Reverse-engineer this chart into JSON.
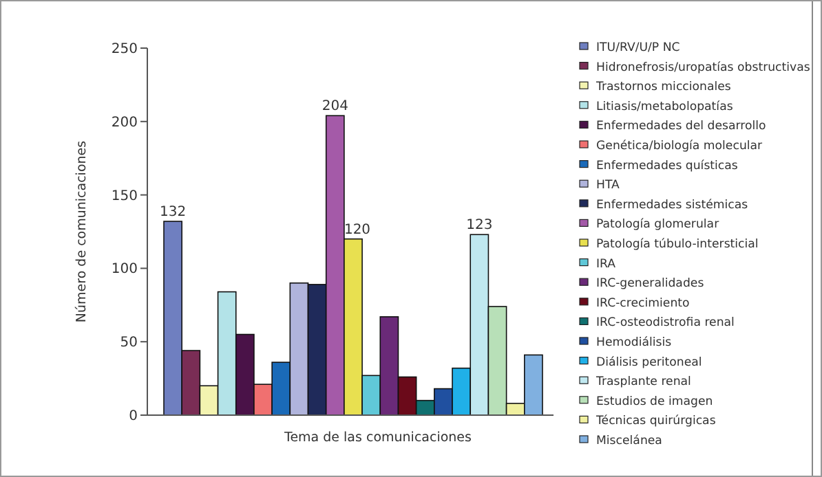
{
  "chart_data": {
    "type": "bar",
    "xlabel": "Tema de las comunicaciones",
    "ylabel": "Número de comunicaciones",
    "categories": [
      null
    ],
    "series": [
      {
        "name": "ITU/RV/U/P NC",
        "color": "#6f7fc0",
        "values": [
          132
        ],
        "value_labels": [
          "132"
        ]
      },
      {
        "name": "Hidronefrosis/uropatías obstructivas",
        "color": "#7a2d55",
        "values": [
          44
        ]
      },
      {
        "name": "Trastornos miccionales",
        "color": "#f3f3b0",
        "values": [
          20
        ]
      },
      {
        "name": "Litiasis/metabolopatías",
        "color": "#b3e3e8",
        "values": [
          84
        ]
      },
      {
        "name": "Enfermedades del desarrollo",
        "color": "#4a1248",
        "values": [
          55
        ]
      },
      {
        "name": "Genética/biología molecular",
        "color": "#f07070",
        "values": [
          21
        ]
      },
      {
        "name": "Enfermedades quísticas",
        "color": "#1a6ab8",
        "values": [
          36
        ]
      },
      {
        "name": "HTA",
        "color": "#b0b4dc",
        "values": [
          90
        ]
      },
      {
        "name": "Enfermedades sistémicas",
        "color": "#1f2a5a",
        "values": [
          89
        ]
      },
      {
        "name": "Patología glomerular",
        "color": "#a45aa8",
        "values": [
          204
        ],
        "value_labels": [
          "204"
        ]
      },
      {
        "name": "Patología túbulo-intersticial",
        "color": "#e8e050",
        "values": [
          120
        ],
        "value_labels": [
          "120"
        ]
      },
      {
        "name": "IRA",
        "color": "#60c8d8",
        "values": [
          27
        ]
      },
      {
        "name": "IRC-generalidades",
        "color": "#6a2a78",
        "values": [
          67
        ]
      },
      {
        "name": "IRC-crecimiento",
        "color": "#6b0a1a",
        "values": [
          26
        ]
      },
      {
        "name": "IRC-osteodistrofia renal",
        "color": "#107070",
        "values": [
          10
        ]
      },
      {
        "name": "Hemodiálisis",
        "color": "#2050a0",
        "values": [
          18
        ]
      },
      {
        "name": "Diálisis peritoneal",
        "color": "#20b0e8",
        "values": [
          32
        ]
      },
      {
        "name": "Trasplante renal",
        "color": "#c0e8f0",
        "values": [
          123
        ],
        "value_labels": [
          "123"
        ]
      },
      {
        "name": "Estudios de imagen",
        "color": "#b8e0b8",
        "values": [
          74
        ]
      },
      {
        "name": "Técnicas quirúrgicas",
        "color": "#f0f0a0",
        "values": [
          8
        ]
      },
      {
        "name": "Miscelánea",
        "color": "#80b0e0",
        "values": [
          41
        ]
      }
    ],
    "ylim": [
      0,
      250
    ],
    "yticks": [
      0,
      50,
      100,
      150,
      200,
      250
    ],
    "tick_labels": "y",
    "legend": "right",
    "grid": false
  }
}
